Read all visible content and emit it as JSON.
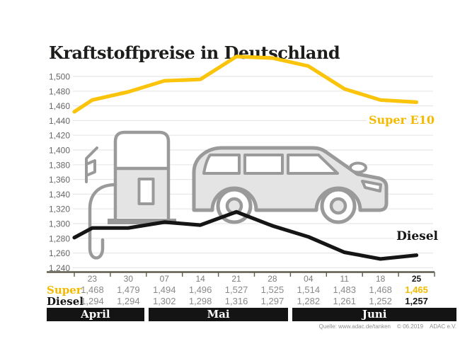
{
  "title": "Kraftstoffpreise in Deutschland",
  "series_labels": {
    "super": "Super E10",
    "diesel": "Diesel"
  },
  "table": {
    "super_row_label": "Super",
    "diesel_row_label": "Diesel"
  },
  "source": {
    "quelle": "Quelle: www.adac.de/tanken",
    "copyright": "© 06.2019",
    "org": "ADAC e.V."
  },
  "colors": {
    "accent_yellow": "#fbc40c",
    "accent_yellow_text": "#f4ba00",
    "line_black": "#151515",
    "axis": "#5e5b4b",
    "grid": "#e8e8e8",
    "muted_text": "#8a8a8a",
    "band_bg": "#141414",
    "illustration_stroke": "#9a9a9a",
    "illustration_fill": "#e4e4e4"
  },
  "chart_data": {
    "type": "line",
    "title": "Kraftstoffpreise in Deutschland",
    "x_dates": [
      "23",
      "30",
      "07",
      "14",
      "21",
      "28",
      "04",
      "11",
      "18",
      "25"
    ],
    "months": [
      {
        "label": "April",
        "cols": 2
      },
      {
        "label": "Mai",
        "cols": 4
      },
      {
        "label": "Juni",
        "cols": 4
      }
    ],
    "series": [
      {
        "name": "Super E10",
        "color": "#fbc40c",
        "lead_in": 1.452,
        "values": [
          1.468,
          1.479,
          1.494,
          1.496,
          1.527,
          1.525,
          1.514,
          1.483,
          1.468,
          1.465
        ]
      },
      {
        "name": "Diesel",
        "color": "#151515",
        "lead_in": 1.281,
        "values": [
          1.294,
          1.294,
          1.302,
          1.298,
          1.316,
          1.297,
          1.282,
          1.261,
          1.252,
          1.257
        ]
      }
    ],
    "ylim": [
      1.24,
      1.5
    ],
    "ytick_step": 0.02,
    "y_labels": [
      "1,500",
      "1,480",
      "1,460",
      "1,440",
      "1,420",
      "1,400",
      "1,380",
      "1,360",
      "1,340",
      "1,320",
      "1,300",
      "1,280",
      "1,260",
      "1,240"
    ],
    "decimal_separator": "comma",
    "grid": true,
    "legend_position": "inline-right"
  }
}
